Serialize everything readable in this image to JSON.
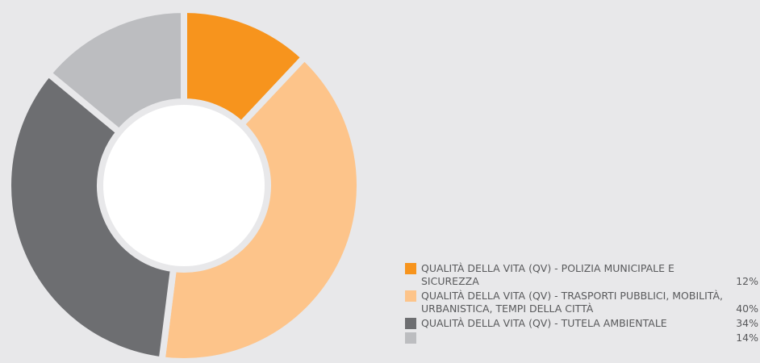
{
  "chart_data": {
    "type": "pie",
    "categories": [
      "QUALITÀ DELLA VITA (QV) - POLIZIA MUNICIPALE E SICUREZZA",
      "QUALITÀ DELLA VITA (QV) - TRASPORTI PUBBLICI, MOBILITÀ, URBANISTICA, TEMPI DELLA CITTÀ",
      "QUALITÀ DELLA VITA (QV) - TUTELA AMBIENTALE",
      null
    ],
    "values": [
      12,
      40,
      34,
      14
    ],
    "value_labels": [
      "12%",
      "40%",
      "34%",
      "14%"
    ],
    "colors": [
      "#f7941d",
      "#fdc48a",
      "#6d6e71",
      "#bcbdc0"
    ],
    "legend": "bottom-right"
  }
}
